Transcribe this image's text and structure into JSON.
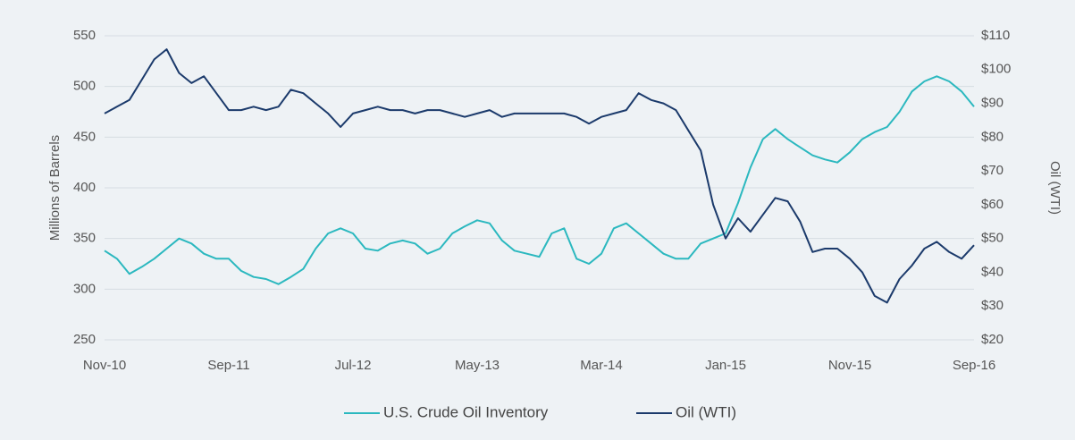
{
  "chart_data": {
    "type": "line",
    "y_label": "Millions of Barrels",
    "y2_label": "Oil (WTI)",
    "categories": [
      "Nov-10",
      null,
      null,
      null,
      null,
      null,
      null,
      null,
      null,
      null,
      "Sep-11",
      null,
      null,
      null,
      null,
      null,
      null,
      null,
      null,
      null,
      "Jul-12",
      null,
      null,
      null,
      null,
      null,
      null,
      null,
      null,
      null,
      "May-13",
      null,
      null,
      null,
      null,
      null,
      null,
      null,
      null,
      null,
      "Mar-14",
      null,
      null,
      null,
      null,
      null,
      null,
      null,
      null,
      null,
      "Jan-15",
      null,
      null,
      null,
      null,
      null,
      null,
      null,
      null,
      null,
      "Nov-15",
      null,
      null,
      null,
      null,
      null,
      null,
      null,
      null,
      null,
      "Sep-16"
    ],
    "series": [
      {
        "name": "U.S. Crude Oil Inventory",
        "color": "#2bb8bf",
        "axis": "y",
        "values": [
          338,
          330,
          315,
          322,
          330,
          340,
          350,
          345,
          335,
          330,
          330,
          318,
          312,
          310,
          305,
          312,
          320,
          340,
          355,
          360,
          355,
          340,
          338,
          345,
          348,
          345,
          335,
          340,
          355,
          362,
          368,
          365,
          348,
          338,
          335,
          332,
          355,
          360,
          330,
          325,
          335,
          360,
          365,
          355,
          345,
          335,
          330,
          330,
          345,
          350,
          355,
          385,
          420,
          448,
          458,
          448,
          440,
          432,
          428,
          425,
          435,
          448,
          455,
          460,
          475,
          495,
          505,
          510,
          505,
          495,
          480
        ]
      },
      {
        "name": "Oil (WTI)",
        "color": "#1b3a6b",
        "axis": "y2",
        "values": [
          87,
          89,
          91,
          97,
          103,
          106,
          99,
          96,
          98,
          93,
          88,
          88,
          89,
          88,
          89,
          94,
          93,
          90,
          87,
          83,
          87,
          88,
          89,
          88,
          88,
          87,
          88,
          88,
          87,
          86,
          87,
          88,
          86,
          87,
          87,
          87,
          87,
          87,
          86,
          84,
          86,
          87,
          88,
          93,
          91,
          90,
          88,
          82,
          76,
          60,
          50,
          56,
          52,
          57,
          62,
          61,
          55,
          46,
          47,
          47,
          44,
          40,
          33,
          31,
          38,
          42,
          47,
          49,
          46,
          44,
          48
        ]
      }
    ],
    "ylim": [
      250,
      550
    ],
    "yticks": [
      250,
      300,
      350,
      400,
      450,
      500,
      550
    ],
    "y2lim": [
      20,
      110
    ],
    "y2ticks": [
      {
        "value": 20,
        "label": "$20"
      },
      {
        "value": 30,
        "label": "$30"
      },
      {
        "value": 40,
        "label": "$40"
      },
      {
        "value": 50,
        "label": "$50"
      },
      {
        "value": 60,
        "label": "$60"
      },
      {
        "value": 70,
        "label": "$70"
      },
      {
        "value": 80,
        "label": "$80"
      },
      {
        "value": 90,
        "label": "$90"
      },
      {
        "value": 100,
        "label": "$100"
      },
      {
        "value": 110,
        "label": "$110"
      }
    ],
    "grid": true,
    "legend": "bottom"
  }
}
